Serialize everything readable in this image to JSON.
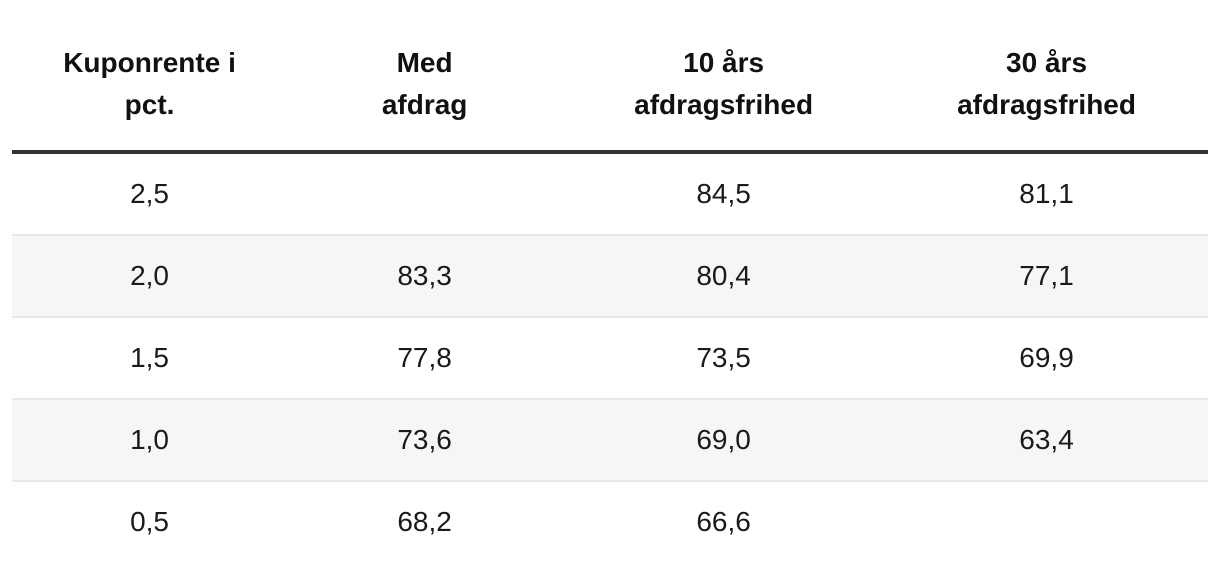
{
  "chart_data": {
    "type": "table",
    "title": "",
    "columns": [
      {
        "id": "kuponrente-i-pct",
        "label": "Kuponrente i pct.",
        "lines": [
          "Kuponrente i",
          "pct."
        ]
      },
      {
        "id": "med-afdrag",
        "label": "Med afdrag",
        "lines": [
          "Med",
          "afdrag"
        ]
      },
      {
        "id": "10-aars-afdragsfrihed",
        "label": "10 års afdragsfrihed",
        "lines": [
          "10 års",
          "afdragsfrihed"
        ]
      },
      {
        "id": "30-aars-afdragsfrihed",
        "label": "30 års afdragsfrihed",
        "lines": [
          "30 års",
          "afdragsfrihed"
        ]
      }
    ],
    "rows": [
      {
        "cells": [
          "2,5",
          "",
          "84,5",
          "81,1"
        ]
      },
      {
        "cells": [
          "2,0",
          "83,3",
          "80,4",
          "77,1"
        ]
      },
      {
        "cells": [
          "1,5",
          "77,8",
          "73,5",
          "69,9"
        ]
      },
      {
        "cells": [
          "1,0",
          "73,6",
          "69,0",
          "63,4"
        ]
      },
      {
        "cells": [
          "0,5",
          "68,2",
          "66,6",
          ""
        ]
      }
    ],
    "layout_hints": {
      "value_alignment": "center",
      "zebra_rows": [
        2,
        4
      ],
      "header_rule": true
    }
  },
  "colors": {
    "header_rule": "#333333",
    "row_divider": "#e8e8e8",
    "row_alt_bg": "#f6f6f6",
    "text": "#1a1a1a",
    "background": "#ffffff"
  }
}
